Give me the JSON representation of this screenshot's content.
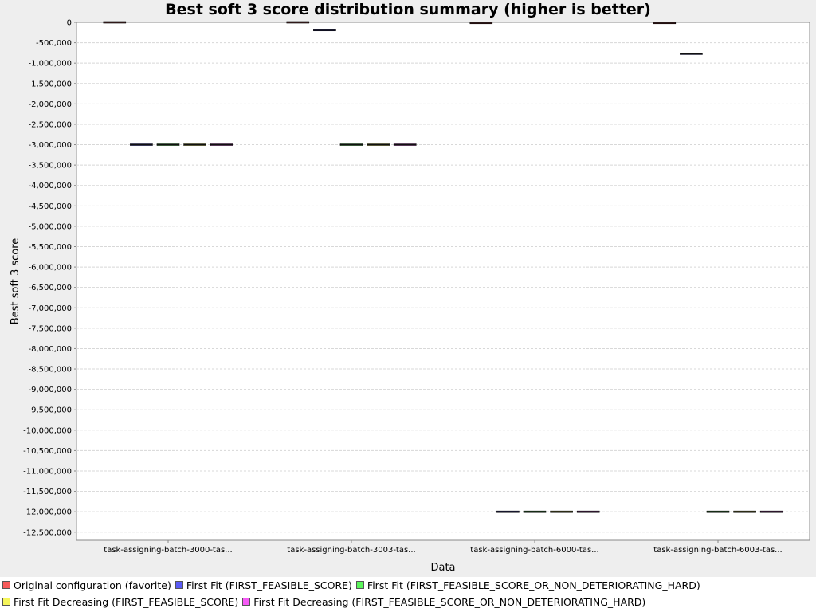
{
  "chart_data": {
    "type": "box",
    "title": "Best soft 3 score distribution summary (higher is better)",
    "xlabel": "Data",
    "ylabel": "Best soft 3 score",
    "ylim": [
      -12700000,
      0
    ],
    "y_tick_step": 500000,
    "y_tick_labels": [
      "0",
      "-500,000",
      "-1,000,000",
      "-1,500,000",
      "-2,000,000",
      "-2,500,000",
      "-3,000,000",
      "-3,500,000",
      "-4,000,000",
      "-4,500,000",
      "-5,000,000",
      "-5,500,000",
      "-6,000,000",
      "-6,500,000",
      "-7,000,000",
      "-7,500,000",
      "-8,000,000",
      "-8,500,000",
      "-9,000,000",
      "-9,500,000",
      "-10,000,000",
      "-10,500,000",
      "-11,000,000",
      "-11,500,000",
      "-12,000,000",
      "-12,500,000"
    ],
    "grid": true,
    "legend_position": "bottom",
    "categories": [
      "task-assigning-batch-3000-tas...",
      "task-assigning-batch-3003-tas...",
      "task-assigning-batch-6000-tas...",
      "task-assigning-batch-6003-tas..."
    ],
    "series": [
      {
        "name": "Original configuration (favorite)",
        "color": "#f55a5a",
        "values": [
          0,
          0,
          -15000,
          -15000
        ]
      },
      {
        "name": "First Fit (FIRST_FEASIBLE_SCORE)",
        "color": "#5a5af5",
        "values": [
          -3000000,
          -190000,
          -12000000,
          -770000
        ]
      },
      {
        "name": "First Fit (FIRST_FEASIBLE_SCORE_OR_NON_DETERIORATING_HARD)",
        "color": "#5af55a",
        "values": [
          -3000000,
          -3000000,
          -12000000,
          -12000000
        ]
      },
      {
        "name": "First Fit Decreasing (FIRST_FEASIBLE_SCORE)",
        "color": "#f5f55a",
        "values": [
          -3000000,
          -3000000,
          -12000000,
          -12000000
        ]
      },
      {
        "name": "First Fit Decreasing (FIRST_FEASIBLE_SCORE_OR_NON_DETERIORATING_HARD)",
        "color": "#f55af5",
        "values": [
          -3000000,
          -3000000,
          -12000000,
          -12000000
        ]
      }
    ]
  }
}
